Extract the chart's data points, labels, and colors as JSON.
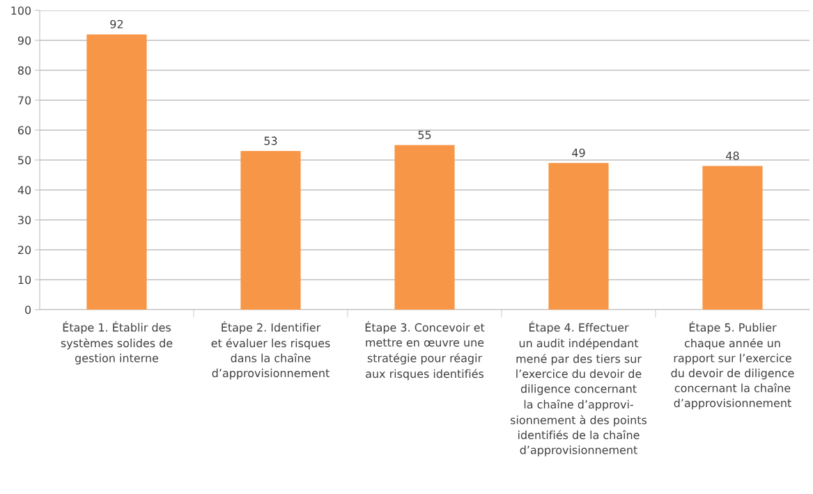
{
  "chart_data": {
    "type": "bar",
    "categories": [
      "Étape 1. Établir des\nsystèmes solides de\ngestion interne",
      "Étape 2. Identifier\net évaluer les risques\ndans la chaîne\nd’approvisionnement",
      "Étape 3. Concevoir et\nmettre en œuvre une\nstratégie pour réagir\naux risques identifiés",
      "Étape 4. Effectuer\nun audit indépendant\nmené par des tiers sur\nl’exercice du devoir de\ndiligence concernant\nla chaîne d’approvi-\nsionnement à des points\nidentifiés de la chaîne\nd’approvisionnement",
      "Étape 5. Publier\nchaque année un\nrapport sur l’exercice\ndu devoir de diligence\nconcernant la chaîne\nd’approvisionnement"
    ],
    "values": [
      92,
      53,
      55,
      49,
      48
    ],
    "color": "#f79646",
    "ylim": [
      0,
      100
    ],
    "yticks": [
      0,
      10,
      20,
      30,
      40,
      50,
      60,
      70,
      80,
      90,
      100
    ],
    "grid": "y",
    "data_labels": true
  }
}
